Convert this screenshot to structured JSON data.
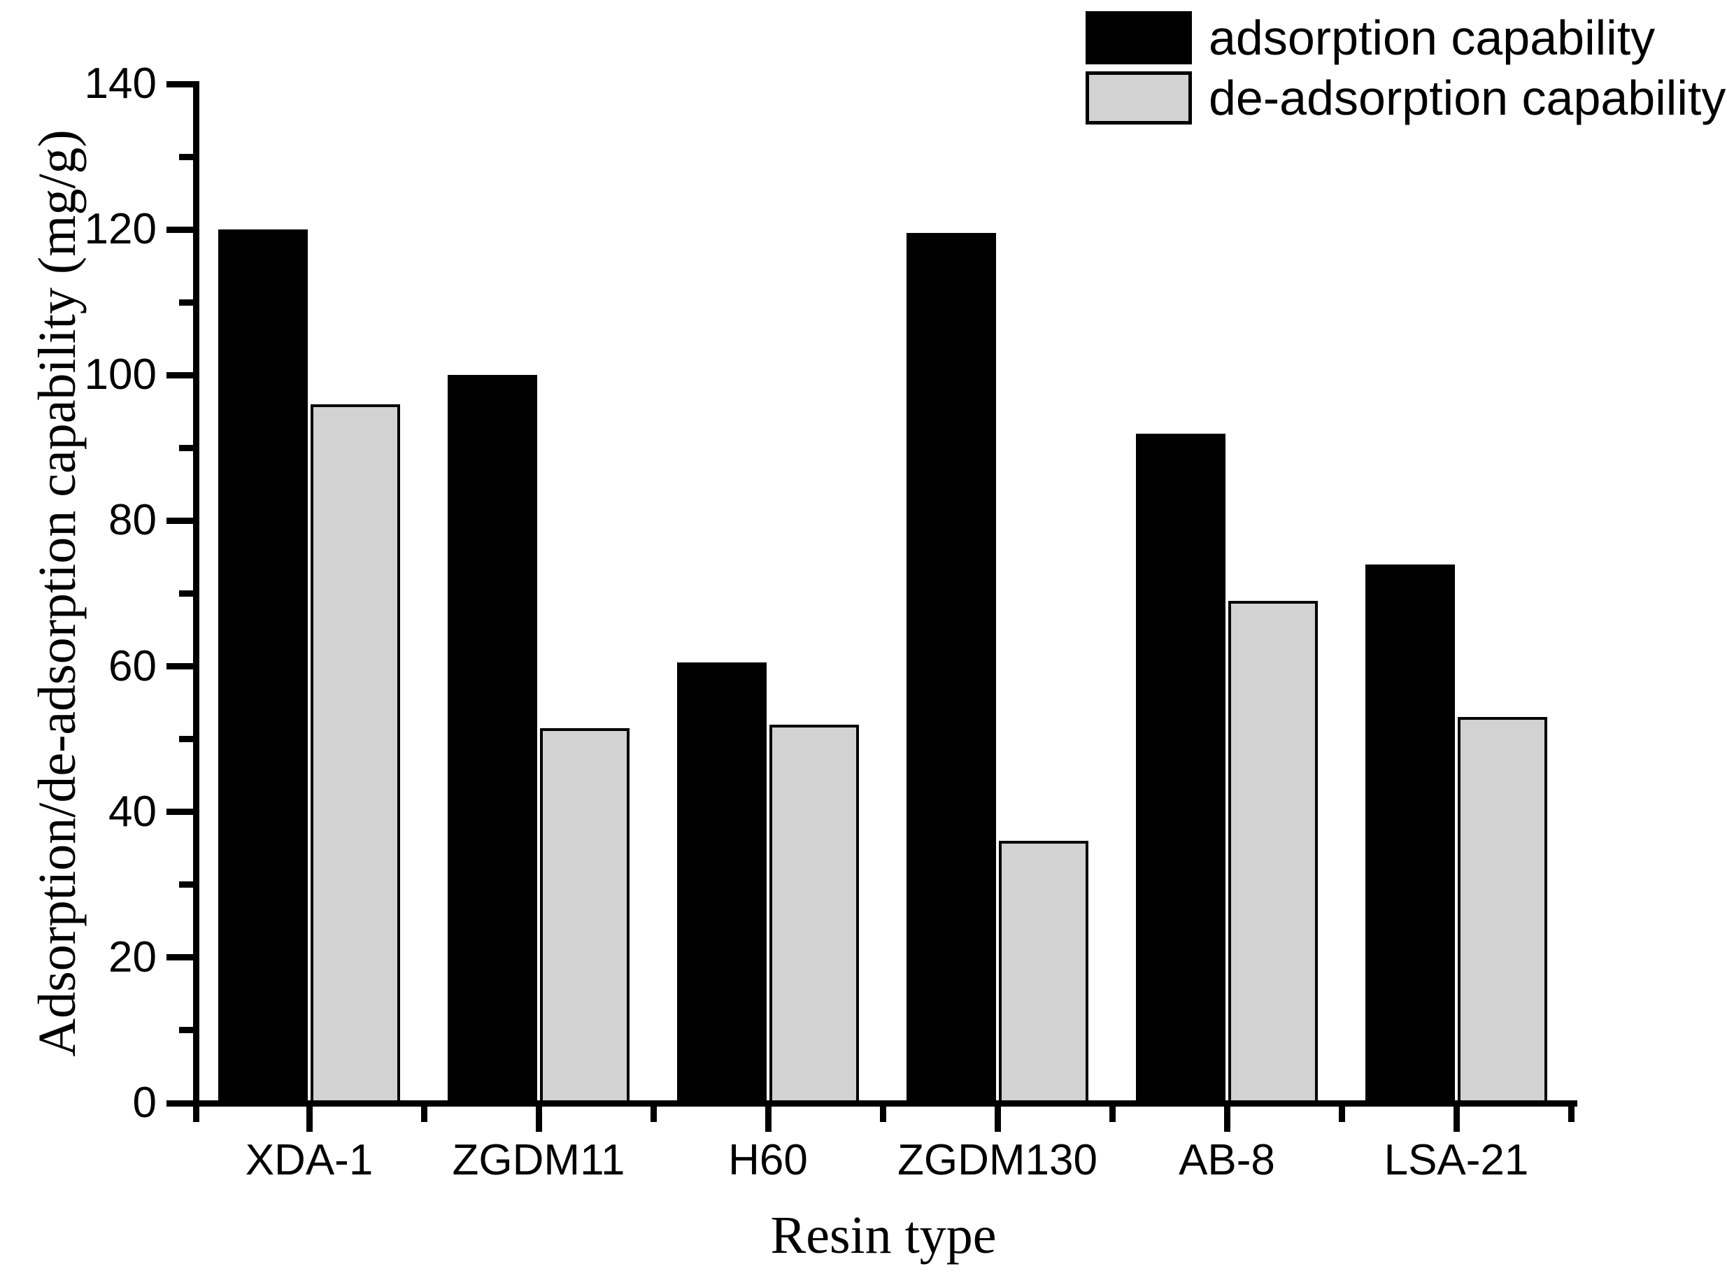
{
  "chart_data": {
    "type": "bar",
    "title": "",
    "xlabel": "Resin type",
    "ylabel": "Adsorption/de-adsorption capability (mg/g)",
    "categories": [
      "XDA-1",
      "ZGDM11",
      "H60",
      "ZGDM130",
      "AB-8",
      "LSA-21"
    ],
    "series": [
      {
        "name": "adsorption capability",
        "color": "#000000",
        "values": [
          120,
          100,
          60.5,
          119.5,
          92,
          74
        ]
      },
      {
        "name": "de-adsorption capability",
        "color": "#d2d2d2",
        "values": [
          96,
          51.5,
          52,
          36,
          69,
          53
        ]
      }
    ],
    "ylim": [
      0,
      140
    ],
    "yticks": [
      0,
      20,
      40,
      60,
      80,
      100,
      120,
      140
    ],
    "y_minor_ticks": [
      10,
      30,
      50,
      70,
      90,
      110,
      130
    ],
    "grid": false,
    "legend_position": "top-right",
    "bar_outline_color": "#000000",
    "background_color": "#ffffff"
  }
}
